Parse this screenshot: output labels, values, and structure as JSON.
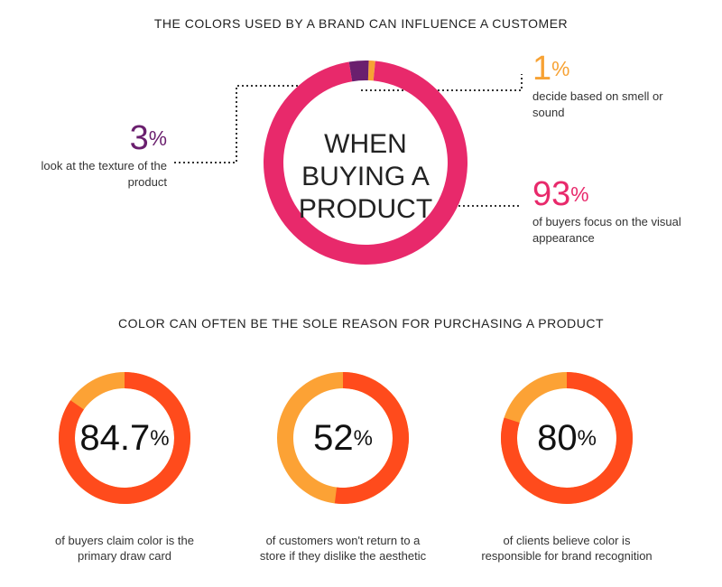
{
  "chart_data": [
    {
      "type": "donut",
      "title": "THE COLORS USED BY A BRAND CAN INFLUENCE A CUSTOMER",
      "center_label": "WHEN BUYING A PRODUCT",
      "categories": [
        "decide based on smell or sound",
        "of buyers focus on the visual appearance",
        "look at the texture of the product"
      ],
      "values": [
        1,
        93,
        3
      ],
      "value_labels": [
        "1%",
        "93%",
        "3%"
      ],
      "colors": [
        "#f7a234",
        "#e8296b",
        "#6a1f6e"
      ]
    },
    {
      "type": "gauge",
      "title": "COLOR CAN OFTEN BE THE SOLE REASON FOR PURCHASING A PRODUCT",
      "caption": "of buyers claim color is the primary draw card",
      "value": 84.7,
      "value_label": "84.7%",
      "color": "#ff4b1c",
      "track_color": "#fca235"
    },
    {
      "type": "gauge",
      "caption": "of customers won't return to a store if they dislike the aesthetic",
      "value": 52,
      "value_label": "52%",
      "color": "#ff4b1c",
      "track_color": "#fca235"
    },
    {
      "type": "gauge",
      "caption": "of clients believe color is responsible for brand recognition",
      "value": 80,
      "value_label": "80%",
      "color": "#ff4b1c",
      "track_color": "#fca235"
    }
  ]
}
